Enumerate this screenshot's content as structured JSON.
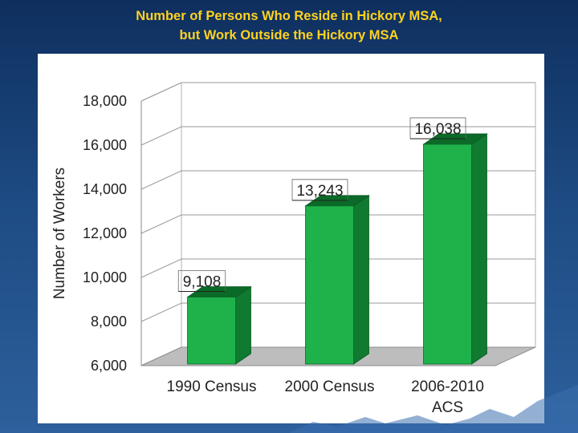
{
  "slide": {
    "title_line1": "Number of Persons Who Reside in Hickory MSA,",
    "title_line2": "but Work Outside the Hickory MSA"
  },
  "colors": {
    "background": "#1d4a82",
    "title": "#ffd21f",
    "bar_front": "#1fb24a",
    "bar_side": "#0f7a30",
    "bar_top": "#0b6a27",
    "floor": "#bdbdbd"
  },
  "chart_data": {
    "type": "bar",
    "style": "3d",
    "categories": [
      "1990 Census",
      "2000 Census",
      "2006-2010 ACS"
    ],
    "category_lines": [
      [
        "1990 Census"
      ],
      [
        "2000 Census"
      ],
      [
        "2006-2010",
        "ACS"
      ]
    ],
    "values": [
      9108,
      13243,
      16038
    ],
    "value_labels": [
      "9,108",
      "13,243",
      "16,038"
    ],
    "ylabel": "Number of Workers",
    "ylim": [
      6000,
      18000
    ],
    "yticks": [
      6000,
      8000,
      10000,
      12000,
      14000,
      16000,
      18000
    ],
    "ytick_labels": [
      "6,000",
      "8,000",
      "10,000",
      "12,000",
      "14,000",
      "16,000",
      "18,000"
    ],
    "grid": true,
    "legend": false
  }
}
